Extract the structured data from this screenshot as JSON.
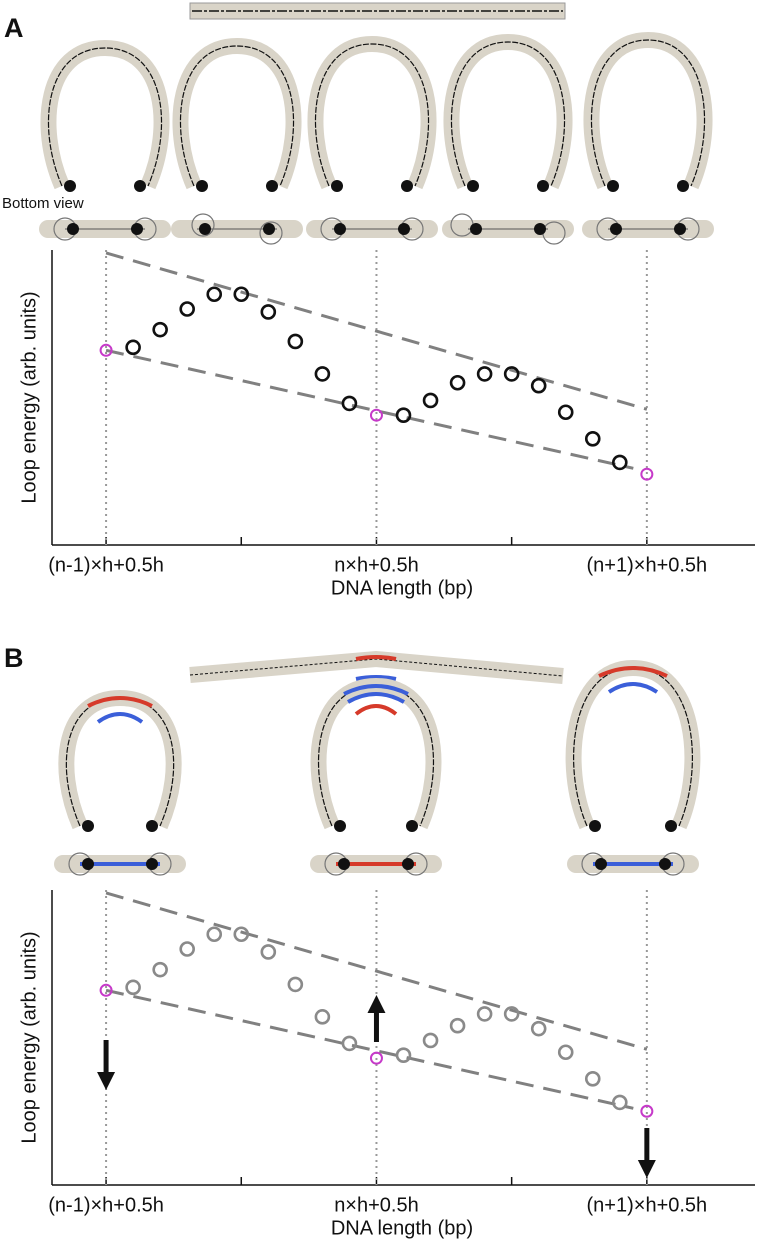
{
  "panel_labels": [
    "A",
    "B"
  ],
  "bottom_view_label": "Bottom view",
  "chart_data": [
    {
      "type": "scatter",
      "x": [
        0,
        1,
        2,
        3,
        4,
        5,
        6,
        7,
        8,
        9,
        10,
        11,
        12,
        13,
        14,
        15,
        16,
        17,
        18,
        19,
        20
      ],
      "series": [
        {
          "color": "#111111",
          "values": [
            6.6,
            6.7,
            7.3,
            8.0,
            8.5,
            8.5,
            7.9,
            6.9,
            5.8,
            4.8,
            4.4,
            4.4,
            4.9,
            5.5,
            5.8,
            5.8,
            5.4,
            4.5,
            3.6,
            2.8,
            2.4
          ]
        }
      ],
      "highlight": {
        "x": [
          0,
          10,
          20
        ],
        "color": "#c639c9"
      },
      "upper_bound": {
        "x": [
          0,
          20
        ],
        "values": [
          9.9,
          4.6
        ]
      },
      "lower_bound": {
        "x": [
          0,
          19.5
        ],
        "values": [
          6.6,
          2.6
        ]
      },
      "bound_color": "#808080",
      "xlim": [
        -2,
        24
      ],
      "ylim": [
        0,
        10
      ],
      "xticks": [
        {
          "value": 0,
          "label": "(n-1)×h+0.5h"
        },
        {
          "value": 10,
          "label": "n×h+0.5h"
        },
        {
          "value": 20,
          "label": "(n+1)×h+0.5h"
        }
      ],
      "xminor_ticks": [
        5,
        15
      ],
      "grid_x": "dotted",
      "xlabel": "DNA length (bp)",
      "ylabel": "Loop energy (arb. units)"
    },
    {
      "type": "scatter",
      "x": [
        0,
        1,
        2,
        3,
        4,
        5,
        6,
        7,
        8,
        9,
        10,
        11,
        12,
        13,
        14,
        15,
        16,
        17,
        18,
        19,
        20
      ],
      "series": [
        {
          "color": "#8a8a8a",
          "values": [
            6.6,
            6.7,
            7.3,
            8.0,
            8.5,
            8.5,
            7.9,
            6.8,
            5.7,
            4.8,
            4.3,
            4.4,
            4.9,
            5.4,
            5.8,
            5.8,
            5.3,
            4.5,
            3.6,
            2.8,
            2.5
          ]
        }
      ],
      "highlight": {
        "x": [
          0,
          10,
          20
        ],
        "color": "#c639c9"
      },
      "upper_bound": {
        "x": [
          0,
          20
        ],
        "values": [
          9.9,
          4.6
        ]
      },
      "lower_bound": {
        "x": [
          0,
          19.5
        ],
        "values": [
          6.6,
          2.6
        ]
      },
      "bound_color": "#808080",
      "xlim": [
        -2,
        24
      ],
      "ylim": [
        0,
        10
      ],
      "xticks": [
        {
          "value": 0,
          "label": "(n-1)×h+0.5h"
        },
        {
          "value": 10,
          "label": "n×h+0.5h"
        },
        {
          "value": 20,
          "label": "(n+1)×h+0.5h"
        }
      ],
      "xminor_ticks": [
        5,
        15
      ],
      "grid_x": "dotted",
      "xlabel": "DNA length (bp)",
      "ylabel": "Loop energy (arb. units)"
    }
  ]
}
